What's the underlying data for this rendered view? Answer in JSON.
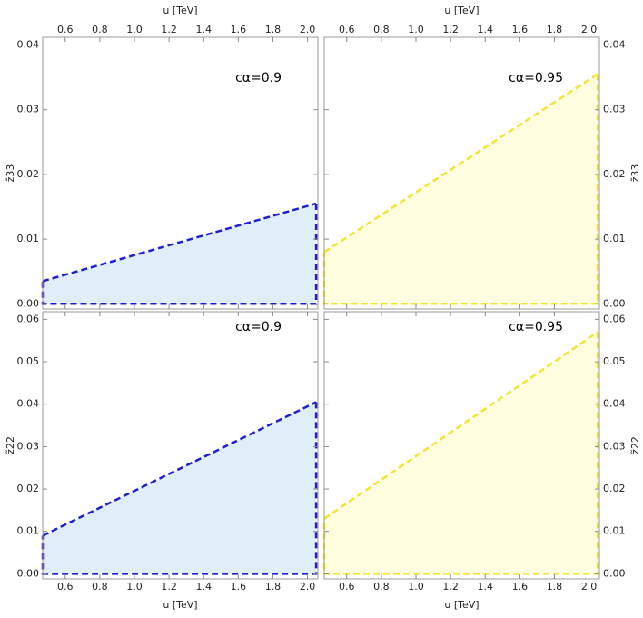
{
  "chart_data": [
    {
      "type": "area",
      "annotation": "cα=0.9",
      "xlabel": "u [TeV]",
      "ylabel": "z̃33",
      "xaxis_side": "top",
      "yaxis_side": "left",
      "x": [
        0.47,
        2.05
      ],
      "xlim": [
        0.47,
        2.06
      ],
      "xticks": [
        0.6,
        0.8,
        {
          "value": 1,
          "label": "1.0"
        },
        1.2,
        1.4,
        1.6,
        1.8,
        {
          "value": 2,
          "label": "2.0"
        }
      ],
      "ylim": [
        -0.0008,
        0.0412
      ],
      "yticks": [
        {
          "value": 0,
          "label": "0.00"
        },
        0.01,
        0.02,
        0.03,
        0.04
      ],
      "series": [
        {
          "color": "#1f1fd0",
          "fill": "#e0eefa",
          "values": [
            0.0035,
            0.0155
          ]
        }
      ]
    },
    {
      "type": "area",
      "annotation": "cα=0.95",
      "xlabel": "u [TeV]",
      "ylabel": "z̃33",
      "xaxis_side": "top",
      "yaxis_side": "right",
      "x": [
        0.47,
        2.05
      ],
      "xlim": [
        0.47,
        2.06
      ],
      "xticks": [
        0.6,
        0.8,
        {
          "value": 1,
          "label": "1.0"
        },
        1.2,
        1.4,
        1.6,
        1.8,
        {
          "value": 2,
          "label": "2.0"
        }
      ],
      "ylim": [
        -0.0008,
        0.0412
      ],
      "yticks": [
        {
          "value": 0,
          "label": "0.00"
        },
        0.01,
        0.02,
        0.03,
        0.04
      ],
      "series": [
        {
          "color": "#f2e530",
          "fill": "#fefde0",
          "values": [
            0.008,
            0.0355
          ]
        }
      ]
    },
    {
      "type": "area",
      "annotation": "cα=0.9",
      "xlabel": "u [TeV]",
      "ylabel": "z̃22",
      "xaxis_side": "bottom",
      "yaxis_side": "left",
      "x": [
        0.47,
        2.05
      ],
      "xlim": [
        0.47,
        2.06
      ],
      "xticks": [
        0.6,
        0.8,
        {
          "value": 1,
          "label": "1.0"
        },
        1.2,
        1.4,
        1.6,
        1.8,
        {
          "value": 2,
          "label": "2.0"
        }
      ],
      "ylim": [
        -0.0012,
        0.0618
      ],
      "yticks": [
        {
          "value": 0,
          "label": "0.00"
        },
        0.01,
        0.02,
        0.03,
        0.04,
        0.05,
        0.06
      ],
      "series": [
        {
          "color": "#1f1fd0",
          "fill": "#e0eefa",
          "values": [
            0.009,
            0.0405
          ]
        }
      ]
    },
    {
      "type": "area",
      "annotation": "cα=0.95",
      "xlabel": "u [TeV]",
      "ylabel": "z̃22",
      "xaxis_side": "bottom",
      "yaxis_side": "right",
      "x": [
        0.47,
        2.05
      ],
      "xlim": [
        0.47,
        2.06
      ],
      "xticks": [
        0.6,
        0.8,
        {
          "value": 1,
          "label": "1.0"
        },
        1.2,
        1.4,
        1.6,
        1.8,
        {
          "value": 2,
          "label": "2.0"
        }
      ],
      "ylim": [
        -0.0012,
        0.0618
      ],
      "yticks": [
        {
          "value": 0,
          "label": "0.00"
        },
        0.01,
        0.02,
        0.03,
        0.04,
        0.05,
        0.06
      ],
      "series": [
        {
          "color": "#f2e530",
          "fill": "#fefde0",
          "values": [
            0.013,
            0.057
          ]
        }
      ]
    }
  ]
}
